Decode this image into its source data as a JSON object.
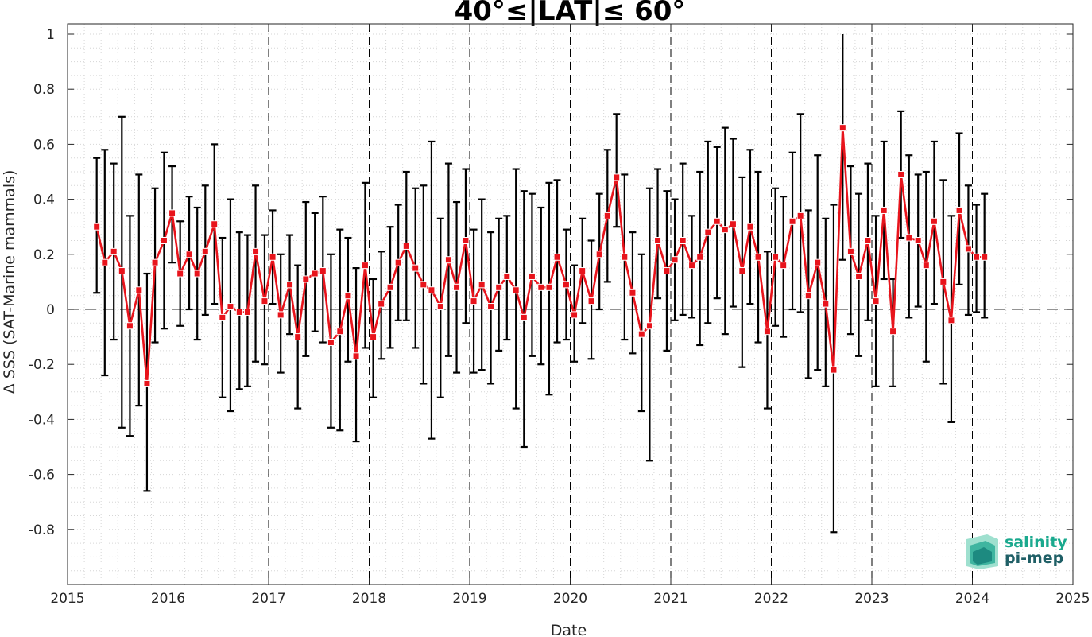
{
  "chart_data": {
    "type": "line",
    "title": "40°≤|LAT|≤ 60°",
    "xlabel": "Date",
    "ylabel": "Δ SSS (SAT-Marine mammals)",
    "xlim": [
      2015,
      2025
    ],
    "ylim": [
      -1,
      1
    ],
    "x_ticks": [
      "2015",
      "2016",
      "2017",
      "2018",
      "2019",
      "2020",
      "2021",
      "2022",
      "2023",
      "2024",
      "2025"
    ],
    "y_ticks": [
      "1",
      "0.8",
      "0.6",
      "0.4",
      "0.2",
      "0",
      "-0.2",
      "-0.4",
      "-0.6",
      "-0.8"
    ],
    "grid": "minor dotted",
    "colors": {
      "series": "#e8141c",
      "errorbar": "#000000",
      "zero_line": "#555555"
    },
    "series": [
      {
        "x": [
          2015.29,
          2015.37,
          2015.46,
          2015.54,
          2015.62,
          2015.71,
          2015.79,
          2015.87,
          2015.96,
          2016.04,
          2016.12,
          2016.21,
          2016.29,
          2016.37,
          2016.46,
          2016.54,
          2016.62,
          2016.71,
          2016.79,
          2016.87,
          2016.96,
          2017.04,
          2017.12,
          2017.21,
          2017.29,
          2017.37,
          2017.46,
          2017.54,
          2017.62,
          2017.71,
          2017.79,
          2017.87,
          2017.96,
          2018.04,
          2018.12,
          2018.21,
          2018.29,
          2018.37,
          2018.46,
          2018.54,
          2018.62,
          2018.71,
          2018.79,
          2018.87,
          2018.96,
          2019.04,
          2019.12,
          2019.21,
          2019.29,
          2019.37,
          2019.46,
          2019.54,
          2019.62,
          2019.71,
          2019.79,
          2019.87,
          2019.96,
          2020.04,
          2020.12,
          2020.21,
          2020.29,
          2020.37,
          2020.46,
          2020.54,
          2020.62,
          2020.71,
          2020.79,
          2020.87,
          2020.96,
          2021.04,
          2021.12,
          2021.21,
          2021.29,
          2021.37,
          2021.46,
          2021.54,
          2021.62,
          2021.71,
          2021.79,
          2021.87,
          2021.96,
          2022.04,
          2022.12,
          2022.21,
          2022.29,
          2022.37,
          2022.46,
          2022.54,
          2022.62,
          2022.71,
          2022.79,
          2022.87,
          2022.96,
          2023.04,
          2023.12,
          2023.21,
          2023.29,
          2023.37,
          2023.46,
          2023.54,
          2023.62,
          2023.71,
          2023.79,
          2023.87,
          2023.96,
          2024.04,
          2024.12
        ],
        "y": [
          0.3,
          0.17,
          0.21,
          0.14,
          -0.06,
          0.07,
          -0.27,
          0.17,
          0.25,
          0.35,
          0.13,
          0.2,
          0.13,
          0.21,
          0.31,
          -0.03,
          0.01,
          -0.01,
          -0.01,
          0.21,
          0.03,
          0.19,
          -0.02,
          0.09,
          -0.1,
          0.11,
          0.13,
          0.14,
          -0.12,
          -0.08,
          0.05,
          -0.17,
          0.16,
          -0.1,
          0.02,
          0.08,
          0.17,
          0.23,
          0.15,
          0.09,
          0.07,
          0.01,
          0.18,
          0.08,
          0.25,
          0.03,
          0.09,
          0.01,
          0.08,
          0.12,
          0.07,
          -0.03,
          0.12,
          0.08,
          0.08,
          0.19,
          0.09,
          -0.02,
          0.14,
          0.03,
          0.2,
          0.34,
          0.48,
          0.19,
          0.06,
          -0.09,
          -0.06,
          0.25,
          0.14,
          0.18,
          0.25,
          0.16,
          0.19,
          0.28,
          0.32,
          0.29,
          0.31,
          0.14,
          0.3,
          0.19,
          -0.08,
          0.19,
          0.16,
          0.32,
          0.34,
          0.05,
          0.17,
          0.02,
          -0.22,
          0.66,
          0.21,
          0.12,
          0.25,
          0.03,
          0.36,
          -0.08,
          0.49,
          0.26,
          0.25,
          0.16,
          0.32,
          0.1,
          -0.04,
          0.36,
          0.22,
          0.19,
          0.19
        ],
        "err_low": [
          0.06,
          -0.24,
          -0.11,
          -0.43,
          -0.46,
          -0.35,
          -0.66,
          -0.12,
          -0.07,
          0.17,
          -0.06,
          0.0,
          -0.11,
          -0.02,
          0.02,
          -0.32,
          -0.37,
          -0.29,
          -0.28,
          -0.19,
          -0.2,
          0.02,
          -0.23,
          -0.09,
          -0.36,
          -0.17,
          -0.08,
          -0.12,
          -0.43,
          -0.44,
          -0.19,
          -0.48,
          -0.14,
          -0.32,
          -0.18,
          -0.14,
          -0.04,
          -0.04,
          -0.14,
          -0.27,
          -0.47,
          -0.32,
          -0.17,
          -0.23,
          -0.05,
          -0.23,
          -0.22,
          -0.27,
          -0.15,
          -0.11,
          -0.36,
          -0.5,
          -0.17,
          -0.2,
          -0.31,
          -0.12,
          -0.11,
          -0.19,
          -0.05,
          -0.18,
          0.0,
          0.1,
          0.3,
          -0.11,
          -0.16,
          -0.37,
          -0.55,
          0.04,
          -0.15,
          -0.04,
          -0.02,
          -0.03,
          -0.13,
          -0.05,
          0.04,
          -0.09,
          0.01,
          -0.21,
          0.02,
          -0.12,
          -0.36,
          -0.06,
          -0.1,
          0.0,
          -0.01,
          -0.25,
          -0.22,
          -0.28,
          -0.81,
          0.18,
          -0.09,
          -0.17,
          -0.04,
          -0.28,
          0.11,
          -0.28,
          0.26,
          -0.03,
          0.01,
          -0.19,
          0.02,
          -0.27,
          -0.41,
          0.09,
          -0.02,
          -0.01,
          -0.03
        ],
        "err_high": [
          0.55,
          0.58,
          0.53,
          0.7,
          0.34,
          0.49,
          0.13,
          0.44,
          0.57,
          0.52,
          0.32,
          0.41,
          0.37,
          0.45,
          0.6,
          0.26,
          0.4,
          0.28,
          0.27,
          0.45,
          0.27,
          0.36,
          0.2,
          0.27,
          0.16,
          0.39,
          0.35,
          0.41,
          0.2,
          0.29,
          0.26,
          0.15,
          0.46,
          0.11,
          0.21,
          0.3,
          0.38,
          0.5,
          0.44,
          0.45,
          0.61,
          0.33,
          0.53,
          0.39,
          0.51,
          0.29,
          0.4,
          0.28,
          0.33,
          0.34,
          0.51,
          0.43,
          0.42,
          0.37,
          0.46,
          0.47,
          0.29,
          0.16,
          0.33,
          0.25,
          0.42,
          0.58,
          0.71,
          0.49,
          0.28,
          0.2,
          0.44,
          0.51,
          0.43,
          0.4,
          0.53,
          0.34,
          0.5,
          0.61,
          0.59,
          0.66,
          0.62,
          0.48,
          0.58,
          0.5,
          0.21,
          0.44,
          0.41,
          0.57,
          0.71,
          0.36,
          0.56,
          0.33,
          0.38,
          1.0,
          0.52,
          0.42,
          0.53,
          0.34,
          0.61,
          0.11,
          0.72,
          0.56,
          0.49,
          0.5,
          0.61,
          0.47,
          0.34,
          0.64,
          0.45,
          0.38,
          0.42
        ]
      }
    ]
  },
  "logo": {
    "line1": "salinity",
    "line2": "pi-mep"
  }
}
